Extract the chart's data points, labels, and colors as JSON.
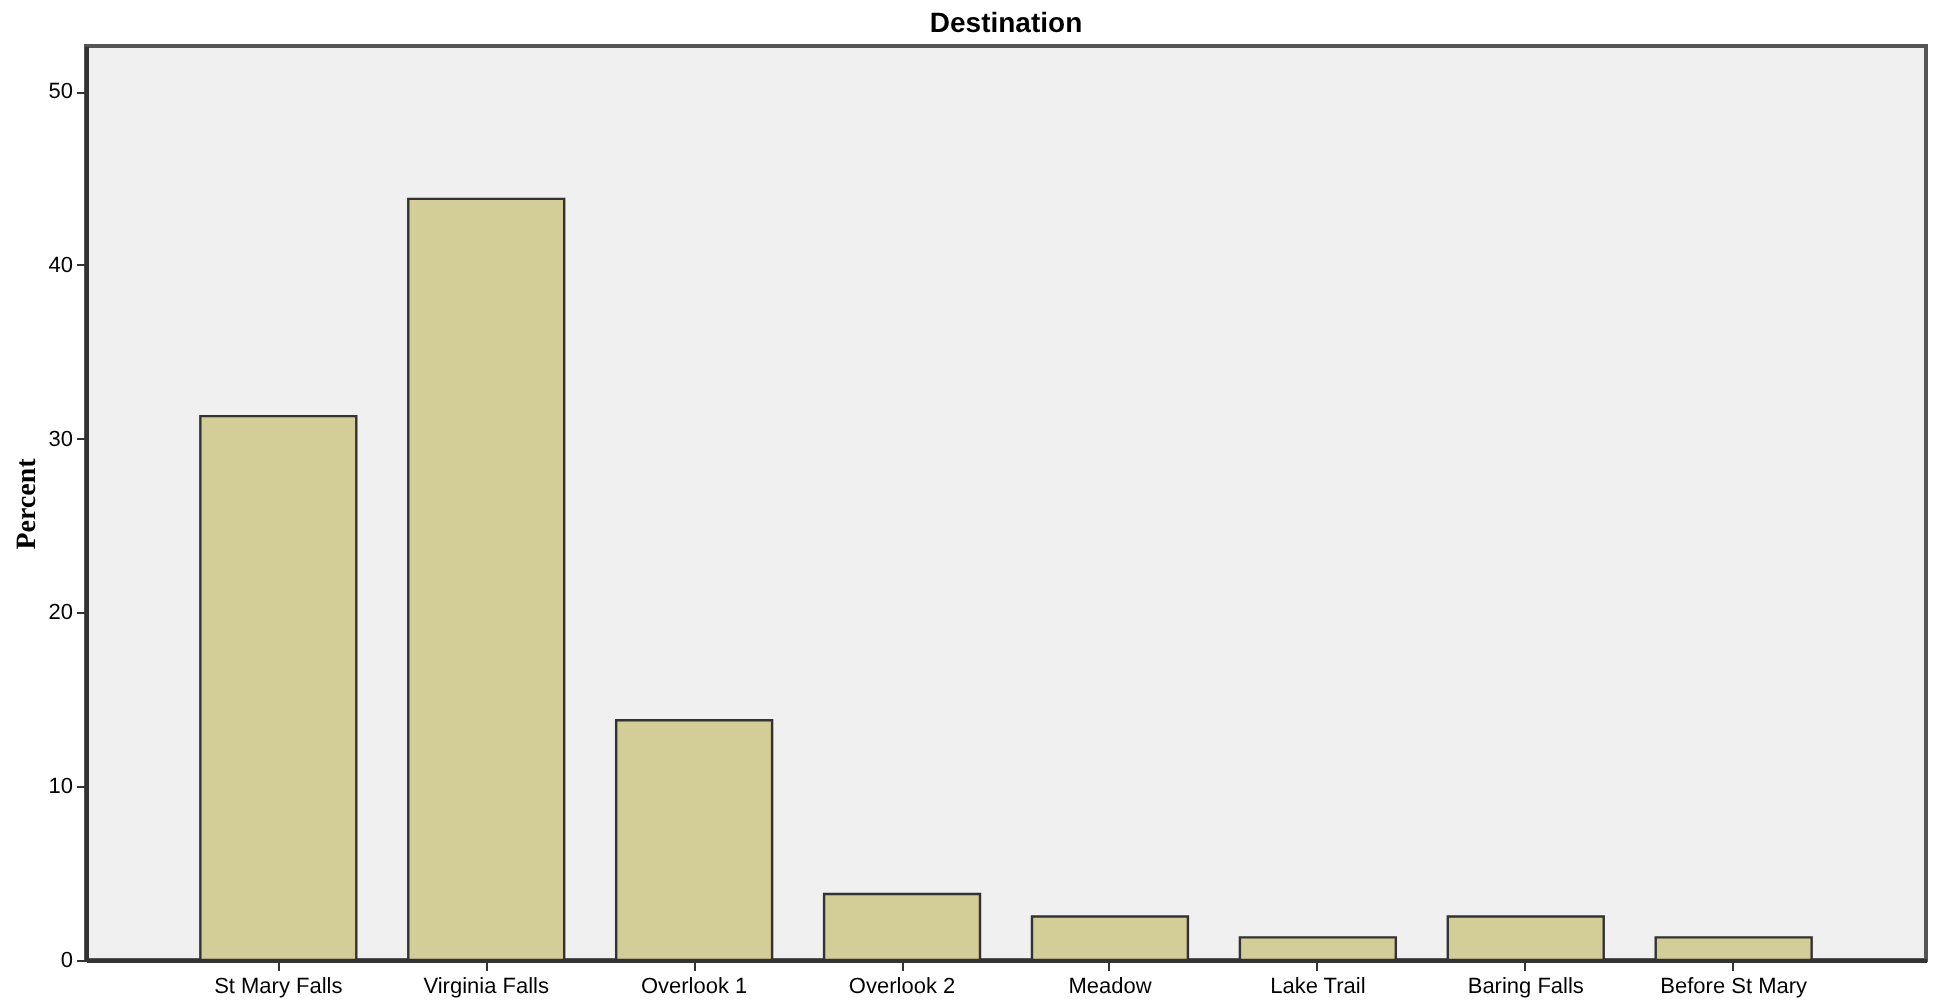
{
  "chart_data": {
    "type": "bar",
    "title": "Destination",
    "ylabel": "Percent",
    "categories": [
      "St Mary Falls",
      "Virginia Falls",
      "Overlook 1",
      "Overlook 2",
      "Meadow",
      "Lake Trail",
      "Baring Falls",
      "Before St Mary"
    ],
    "values": [
      31.3,
      43.8,
      13.8,
      3.8,
      2.5,
      1.3,
      2.5,
      1.3
    ],
    "color": "#d3ce97",
    "ylim": [
      0,
      52.6
    ],
    "yticks": [
      0,
      10,
      20,
      30,
      40,
      50
    ],
    "grid": false,
    "legend": false
  }
}
